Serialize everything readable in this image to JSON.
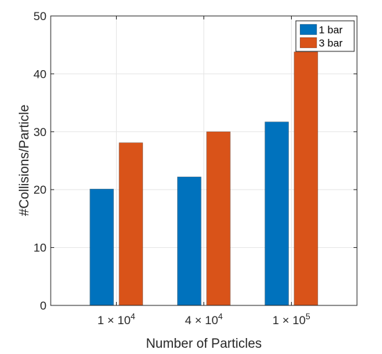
{
  "chart_data": {
    "type": "bar",
    "categories": [
      {
        "coef": "1",
        "times": "×",
        "base": "10",
        "exp": "4"
      },
      {
        "coef": "4",
        "times": "×",
        "base": "10",
        "exp": "4"
      },
      {
        "coef": "1",
        "times": "×",
        "base": "10",
        "exp": "5"
      }
    ],
    "series": [
      {
        "name": "1 bar",
        "color": "#0072BD",
        "values": [
          20.1,
          22.2,
          31.7
        ]
      },
      {
        "name": "3 bar",
        "color": "#D95319",
        "values": [
          28.1,
          30.0,
          43.8
        ]
      }
    ],
    "xlabel": "Number of Particles",
    "ylabel": "#Collisions/Particle",
    "ylim": [
      0,
      50
    ],
    "yticks": [
      0,
      10,
      20,
      30,
      40,
      50
    ],
    "grid": true,
    "legend_position": "top-right"
  }
}
